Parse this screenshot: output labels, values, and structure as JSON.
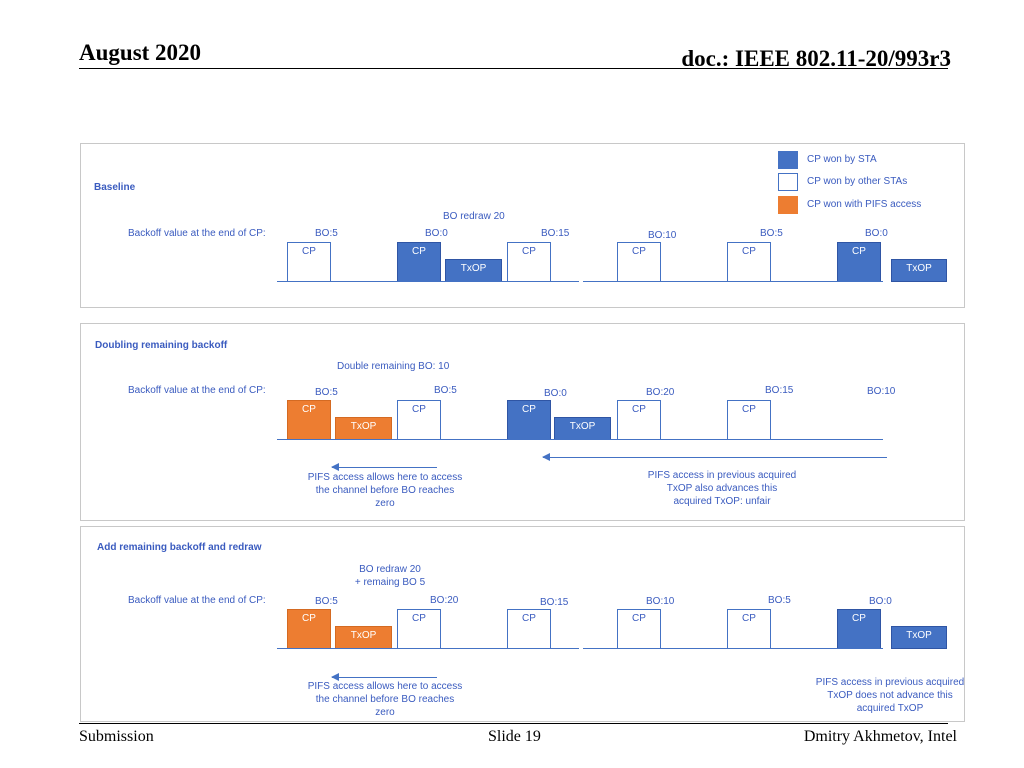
{
  "header": {
    "date": "August 2020",
    "doc": "doc.: IEEE 802.11-20/993r3"
  },
  "footer": {
    "left": "Submission",
    "center": "Slide 19",
    "right": "Dmitry Akhmetov, Intel"
  },
  "colors": {
    "sta": "#4472c4",
    "other": "#ffffff",
    "pifs": "#ed7d31",
    "text": "#3a5bbf"
  },
  "legend": {
    "sta": "CP won by STA",
    "other": "CP won by other STAs",
    "pifs": "CP won with PIFS access"
  },
  "row_label": "Backoff value at the end of CP:",
  "cp": "CP",
  "txop": "TxOP",
  "baseline": {
    "title": "Baseline",
    "note": "BO redraw 20",
    "bo": [
      "BO:5",
      "BO:0",
      "BO:15",
      "BO:10",
      "BO:5",
      "BO:0"
    ]
  },
  "doubling": {
    "title": "Doubling remaining backoff",
    "note": "Double remaining BO: 10",
    "bo": [
      "BO:5",
      "BO:5",
      "BO:0",
      "BO:20",
      "BO:15",
      "BO:10"
    ],
    "left_note": "PIFS access allows here to access the channel before BO reaches zero",
    "right_note": "PIFS access in previous acquired TxOP also advances this acquired TxOP: unfair"
  },
  "add": {
    "title": "Add remaining backoff and redraw",
    "note_line1": "BO redraw 20",
    "note_line2": "+ remaing BO 5",
    "bo": [
      "BO:5",
      "BO:20",
      "BO:15",
      "BO:10",
      "BO:5",
      "BO:0"
    ],
    "left_note": "PIFS access allows here to access the channel before BO reaches zero",
    "right_note": "PIFS access in previous acquired TxOP does not advance this acquired TxOP"
  }
}
